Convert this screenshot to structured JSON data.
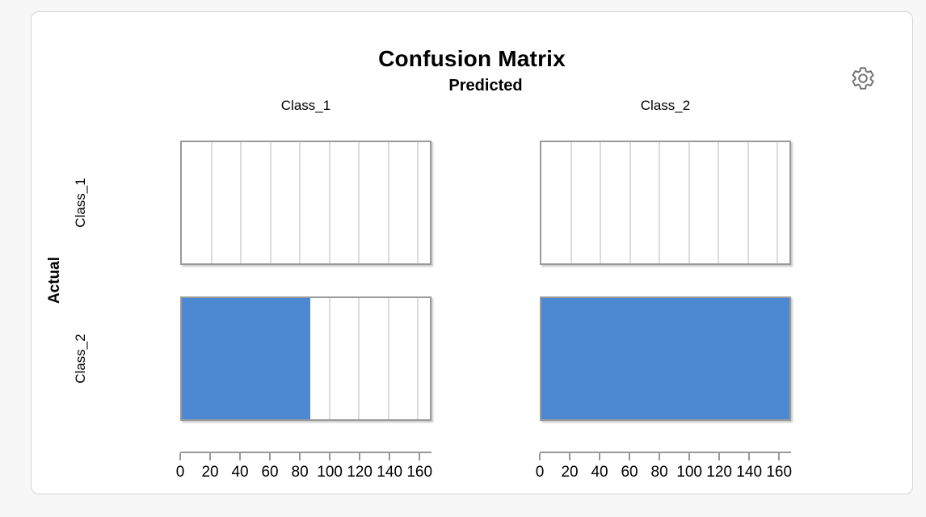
{
  "page": {
    "background": "#f7f7f7"
  },
  "card": {
    "background": "#ffffff",
    "border_color": "#d4d4d4"
  },
  "toolbar": {
    "options_icon": "gear-icon"
  },
  "chart_data": {
    "type": "bar",
    "title": "Confusion Matrix",
    "column_dimension_label": "Predicted",
    "row_dimension_label": "Actual",
    "columns": [
      "Class_1",
      "Class_2"
    ],
    "rows": [
      "Class_1",
      "Class_2"
    ],
    "values": [
      [
        0,
        0
      ],
      [
        87,
        168
      ]
    ],
    "xlim": [
      0,
      168
    ],
    "x_ticks": [
      0,
      20,
      40,
      60,
      80,
      100,
      120,
      140,
      160
    ],
    "grid": "vertical gridlines every 20 units",
    "legend_position": "none",
    "bar_color": "#4d89d2",
    "grid_color": "#dcdcdc",
    "axis_color": "#999999",
    "text_color": "#000000"
  }
}
